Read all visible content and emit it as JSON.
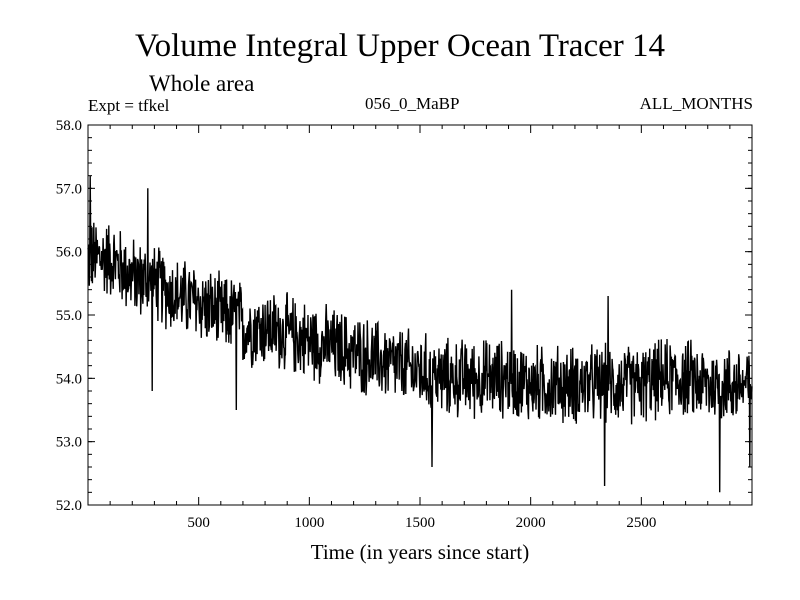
{
  "header": {
    "title": "Volume Integral Upper Ocean Tracer 14",
    "subtitle": "Whole area",
    "experiment": "Expt = tfkel",
    "run_id": "056_0_MaBP",
    "months": "ALL_MONTHS"
  },
  "chart_data": {
    "type": "line",
    "title": "Volume Integral Upper Ocean Tracer 14",
    "subtitle": "Whole area",
    "xlabel": "Time (in years since start)",
    "ylabel": "",
    "xlim": [
      0,
      3000
    ],
    "ylim": [
      52.0,
      58.0
    ],
    "xticks": [
      "500",
      "1000",
      "1500",
      "2000",
      "2500"
    ],
    "yticks": [
      "52.0",
      "53.0",
      "54.0",
      "55.0",
      "56.0",
      "57.0",
      "58.0"
    ],
    "grid": false,
    "series": [
      {
        "x": [
          0,
          100,
          200,
          300,
          400,
          500,
          600,
          680,
          700,
          800,
          900,
          1000,
          1100,
          1200,
          1300,
          1400,
          1500,
          1600,
          1700,
          1800,
          1900,
          2000,
          2100,
          2200,
          2300,
          2400,
          2500,
          2600,
          2700,
          2800,
          2900,
          3000
        ],
        "y": [
          55.9,
          55.9,
          55.6,
          55.5,
          55.3,
          55.2,
          55.0,
          55.0,
          54.8,
          54.8,
          54.7,
          54.6,
          54.5,
          54.4,
          54.3,
          54.2,
          54.1,
          54.0,
          54.0,
          54.0,
          54.0,
          53.9,
          53.9,
          53.9,
          53.9,
          53.9,
          53.9,
          54.0,
          54.0,
          53.9,
          53.9,
          53.9
        ]
      }
    ],
    "peaks": [
      {
        "x": 10,
        "y": 57.2
      },
      {
        "x": 270,
        "y": 57.0
      },
      {
        "x": 1915,
        "y": 55.4
      },
      {
        "x": 2350,
        "y": 55.3
      }
    ],
    "troughs": [
      {
        "x": 290,
        "y": 53.8
      },
      {
        "x": 670,
        "y": 53.5
      },
      {
        "x": 1555,
        "y": 52.6
      },
      {
        "x": 2335,
        "y": 52.3
      },
      {
        "x": 2855,
        "y": 52.2
      },
      {
        "x": 2990,
        "y": 52.6
      }
    ],
    "noise_amplitude": 0.55
  }
}
